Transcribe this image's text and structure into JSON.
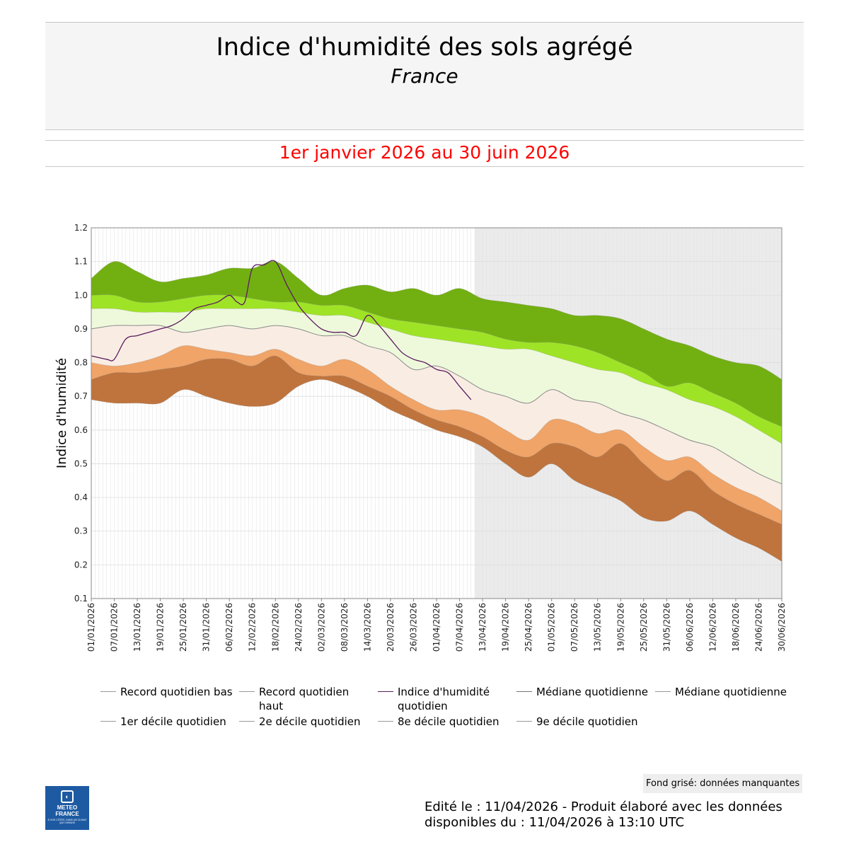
{
  "header": {
    "title": "Indice d'humidité des sols agrégé",
    "subtitle": "France",
    "period": "1er janvier 2026 au 30 juin 2026"
  },
  "footer": {
    "missing_note": "Fond grisé: données manquantes",
    "edited": "Edité le : 11/04/2026 - Produit élaboré avec les données disponibles du : 11/04/2026 à 13:10 UTC",
    "logo_name_1": "METEO",
    "logo_name_2": "FRANCE",
    "logo_tagline": "À VOS CÔTÉS, DANS UN CLIMAT QUI CHANGE"
  },
  "legend": [
    {
      "label": "Record quotidien bas",
      "color": "#bbbbbb"
    },
    {
      "label": "Record quotidien haut",
      "color": "#bbbbbb"
    },
    {
      "label": "Indice d'humidité quotidien",
      "color": "#5a1a5e"
    },
    {
      "label": "Médiane quotidienne",
      "color": "#777777"
    },
    {
      "label": "Médiane quotidienne",
      "color": "#bbbbbb"
    },
    {
      "label": "1er décile quotidien",
      "color": "#bbbbbb"
    },
    {
      "label": "2e décile quotidien",
      "color": "#bbbbbb"
    },
    {
      "label": "8e décile quotidien",
      "color": "#bbbbbb"
    },
    {
      "label": "9e décile quotidien",
      "color": "#bbbbbb"
    }
  ],
  "colors": {
    "band_record_low_d1": "#bf743e",
    "band_d1_d2": "#f0a468",
    "band_d2_median": "#f9ede3",
    "band_median_d8": "#eef9dc",
    "band_d8_d9": "#9fe327",
    "band_d9_record_high": "#72b012",
    "index_line": "#5a1a5e",
    "median_line": "#8a8a8a",
    "missing_bg": "#ebebeb"
  },
  "chart_data": {
    "type": "area",
    "title": "Indice d'humidité des sols agrégé",
    "subtitle": "France",
    "ylabel": "Indice d'humidité",
    "xlabel": "",
    "ylim": [
      0.1,
      1.2
    ],
    "yticks": [
      0.1,
      0.2,
      0.3,
      0.4,
      0.5,
      0.6,
      0.7,
      0.8,
      0.9,
      1.0,
      1.1,
      1.2
    ],
    "ytick_labels": [
      "0.1",
      "0.2",
      "0.3",
      "0.4",
      "0.5",
      "0.6",
      "0.7",
      "0.8",
      "0.9",
      "1.0",
      "1.1",
      "1.2"
    ],
    "x_days": 181,
    "xtick_day_index": [
      0,
      6,
      12,
      18,
      24,
      30,
      36,
      42,
      48,
      54,
      60,
      66,
      72,
      78,
      84,
      90,
      96,
      102,
      108,
      114,
      120,
      126,
      132,
      138,
      144,
      150,
      156,
      162,
      168,
      174,
      180
    ],
    "xtick_labels": [
      "01/01/2026",
      "07/01/2026",
      "13/01/2026",
      "19/01/2026",
      "25/01/2026",
      "31/01/2026",
      "06/02/2026",
      "12/02/2026",
      "18/02/2026",
      "24/02/2026",
      "02/03/2026",
      "08/03/2026",
      "14/03/2026",
      "20/03/2026",
      "26/03/2026",
      "01/04/2026",
      "07/04/2026",
      "13/04/2026",
      "19/04/2026",
      "25/04/2026",
      "01/05/2026",
      "07/05/2026",
      "13/05/2026",
      "19/05/2026",
      "25/05/2026",
      "31/05/2026",
      "06/06/2026",
      "12/06/2026",
      "18/06/2026",
      "24/06/2026",
      "30/06/2026"
    ],
    "missing_from_day": 100,
    "missing_to_day": 180,
    "band_day_index": [
      0,
      6,
      12,
      18,
      24,
      30,
      36,
      42,
      48,
      54,
      60,
      66,
      72,
      78,
      84,
      90,
      96,
      102,
      108,
      114,
      120,
      126,
      132,
      138,
      144,
      150,
      156,
      162,
      168,
      174,
      180
    ],
    "series": [
      {
        "name": "Record quotidien bas",
        "values": [
          0.69,
          0.68,
          0.68,
          0.68,
          0.72,
          0.7,
          0.68,
          0.67,
          0.68,
          0.73,
          0.75,
          0.73,
          0.7,
          0.66,
          0.63,
          0.6,
          0.58,
          0.55,
          0.5,
          0.46,
          0.5,
          0.45,
          0.42,
          0.39,
          0.34,
          0.33,
          0.36,
          0.32,
          0.28,
          0.25,
          0.21
        ]
      },
      {
        "name": "1er décile quotidien",
        "values": [
          0.75,
          0.77,
          0.77,
          0.78,
          0.79,
          0.81,
          0.81,
          0.79,
          0.82,
          0.77,
          0.76,
          0.76,
          0.73,
          0.7,
          0.66,
          0.63,
          0.61,
          0.58,
          0.54,
          0.52,
          0.56,
          0.55,
          0.52,
          0.56,
          0.5,
          0.45,
          0.48,
          0.42,
          0.38,
          0.35,
          0.32
        ]
      },
      {
        "name": "2e décile quotidien",
        "values": [
          0.8,
          0.79,
          0.8,
          0.82,
          0.85,
          0.84,
          0.83,
          0.82,
          0.84,
          0.81,
          0.79,
          0.81,
          0.78,
          0.73,
          0.69,
          0.66,
          0.66,
          0.64,
          0.6,
          0.57,
          0.63,
          0.62,
          0.59,
          0.6,
          0.55,
          0.51,
          0.52,
          0.47,
          0.43,
          0.4,
          0.36
        ]
      },
      {
        "name": "Médiane quotidienne",
        "values": [
          0.9,
          0.91,
          0.91,
          0.91,
          0.89,
          0.9,
          0.91,
          0.9,
          0.91,
          0.9,
          0.88,
          0.88,
          0.85,
          0.83,
          0.78,
          0.79,
          0.76,
          0.72,
          0.7,
          0.68,
          0.72,
          0.69,
          0.68,
          0.65,
          0.63,
          0.6,
          0.57,
          0.55,
          0.51,
          0.47,
          0.44
        ]
      },
      {
        "name": "8e décile quotidien",
        "values": [
          0.96,
          0.96,
          0.95,
          0.95,
          0.95,
          0.96,
          0.96,
          0.96,
          0.96,
          0.95,
          0.94,
          0.94,
          0.92,
          0.9,
          0.88,
          0.87,
          0.86,
          0.85,
          0.84,
          0.84,
          0.82,
          0.8,
          0.78,
          0.77,
          0.74,
          0.72,
          0.69,
          0.67,
          0.64,
          0.6,
          0.56
        ]
      },
      {
        "name": "9e décile quotidien",
        "values": [
          1.0,
          1.0,
          0.98,
          0.98,
          0.99,
          1.0,
          1.0,
          0.99,
          0.98,
          0.98,
          0.97,
          0.97,
          0.95,
          0.93,
          0.92,
          0.91,
          0.9,
          0.89,
          0.87,
          0.86,
          0.86,
          0.85,
          0.83,
          0.8,
          0.77,
          0.73,
          0.74,
          0.71,
          0.68,
          0.64,
          0.61
        ]
      },
      {
        "name": "Record quotidien haut",
        "values": [
          1.05,
          1.1,
          1.07,
          1.04,
          1.05,
          1.06,
          1.08,
          1.08,
          1.1,
          1.05,
          1.0,
          1.02,
          1.03,
          1.01,
          1.02,
          1.0,
          1.02,
          0.99,
          0.98,
          0.97,
          0.96,
          0.94,
          0.94,
          0.93,
          0.9,
          0.87,
          0.85,
          0.82,
          0.8,
          0.79,
          0.75
        ]
      },
      {
        "name": "Indice d'humidité quotidien",
        "day_index": [
          0,
          4,
          6,
          9,
          12,
          15,
          18,
          21,
          24,
          27,
          30,
          33,
          36,
          38,
          40,
          42,
          45,
          48,
          51,
          54,
          57,
          60,
          63,
          66,
          69,
          72,
          75,
          78,
          81,
          84,
          87,
          90,
          93,
          96,
          99
        ],
        "values": [
          0.82,
          0.81,
          0.81,
          0.87,
          0.88,
          0.89,
          0.9,
          0.91,
          0.93,
          0.96,
          0.97,
          0.98,
          1.0,
          0.98,
          0.98,
          1.08,
          1.09,
          1.1,
          1.03,
          0.97,
          0.93,
          0.9,
          0.89,
          0.89,
          0.88,
          0.94,
          0.91,
          0.87,
          0.83,
          0.81,
          0.8,
          0.78,
          0.77,
          0.73,
          0.69
        ]
      }
    ]
  }
}
